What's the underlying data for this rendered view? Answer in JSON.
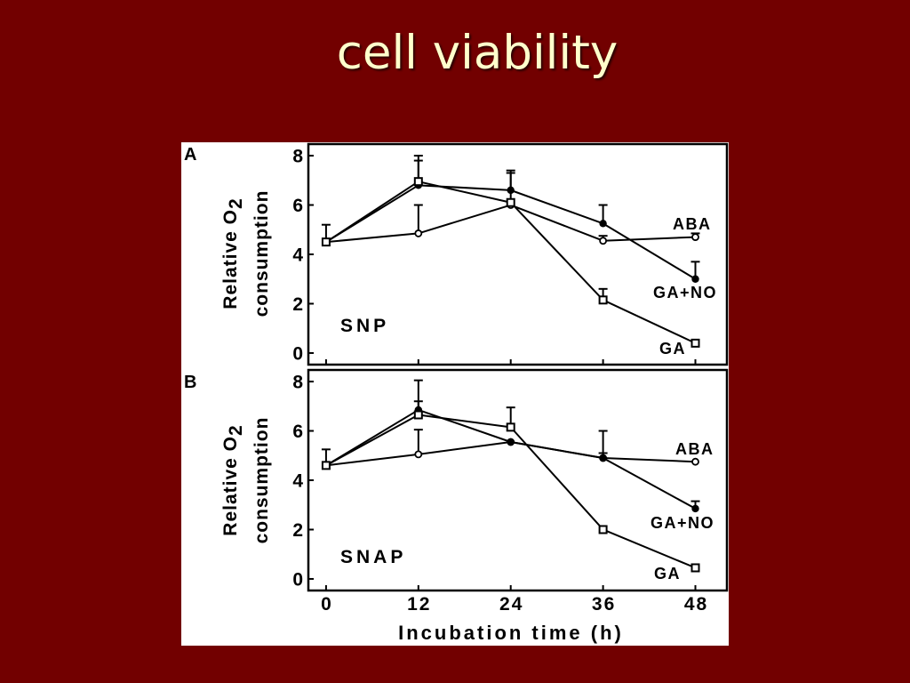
{
  "slide": {
    "title": "cell viability"
  },
  "colors": {
    "background": "#720000",
    "title": "#FFFFCC",
    "figure_background": "#FFFFFF",
    "ink": "#000000"
  },
  "chart_data": [
    {
      "panel_label": "A",
      "type": "line",
      "annotation": "SNP",
      "grid": false,
      "x": [
        0,
        12,
        24,
        36,
        48
      ],
      "xlim": [
        -2.3,
        52.1
      ],
      "ylim": [
        -0.47,
        8.47
      ],
      "xticks": [
        0,
        12,
        24,
        36,
        48
      ],
      "yticks": [
        0,
        2,
        4,
        6,
        8
      ],
      "yticklabels": [
        "0",
        "2",
        "4",
        "6",
        "8"
      ],
      "ylabel": {
        "line1": "Relative O",
        "subscript": "2",
        "line2": "consumption"
      },
      "series": [
        {
          "name": "ABA",
          "marker": "open-circle",
          "values": [
            4.5,
            4.85,
            6.0,
            4.55,
            4.7
          ],
          "error_upper": [
            0.7,
            1.15,
            0,
            0.2,
            0.15
          ]
        },
        {
          "name": "GA+NO",
          "marker": "filled-circle",
          "values": [
            4.5,
            6.8,
            6.6,
            5.25,
            3.0
          ],
          "error_upper": [
            0,
            1.0,
            0.8,
            0.75,
            0.7
          ]
        },
        {
          "name": "GA",
          "marker": "open-square",
          "values": [
            4.5,
            6.95,
            6.1,
            2.15,
            0.4
          ],
          "error_upper": [
            0,
            1.05,
            1.2,
            0.45,
            0
          ]
        }
      ]
    },
    {
      "panel_label": "B",
      "type": "line",
      "annotation": "SNAP",
      "grid": false,
      "x": [
        0,
        12,
        24,
        36,
        48
      ],
      "xlim": [
        -2.3,
        52.1
      ],
      "ylim": [
        -0.47,
        8.47
      ],
      "xticks": [
        0,
        12,
        24,
        36,
        48
      ],
      "xticklabels": [
        "0",
        "12",
        "24",
        "36",
        "48"
      ],
      "xlabel": "Incubation time (h)",
      "yticks": [
        0,
        2,
        4,
        6,
        8
      ],
      "yticklabels": [
        "0",
        "2",
        "4",
        "6",
        "8"
      ],
      "ylabel": {
        "line1": "Relative O",
        "subscript": "2",
        "line2": "consumption"
      },
      "series": [
        {
          "name": "ABA",
          "marker": "open-circle",
          "values": [
            4.6,
            5.05,
            5.55,
            4.9,
            4.75
          ],
          "error_upper": [
            0.65,
            1.0,
            0,
            0.2,
            0
          ]
        },
        {
          "name": "GA+NO",
          "marker": "filled-circle",
          "values": [
            4.6,
            6.85,
            5.55,
            4.9,
            2.85
          ],
          "error_upper": [
            0,
            1.2,
            0,
            1.1,
            0.3
          ]
        },
        {
          "name": "GA",
          "marker": "open-square",
          "values": [
            4.6,
            6.65,
            6.15,
            2.0,
            0.45
          ],
          "error_upper": [
            0,
            0.55,
            0.8,
            0,
            0
          ]
        }
      ]
    }
  ]
}
